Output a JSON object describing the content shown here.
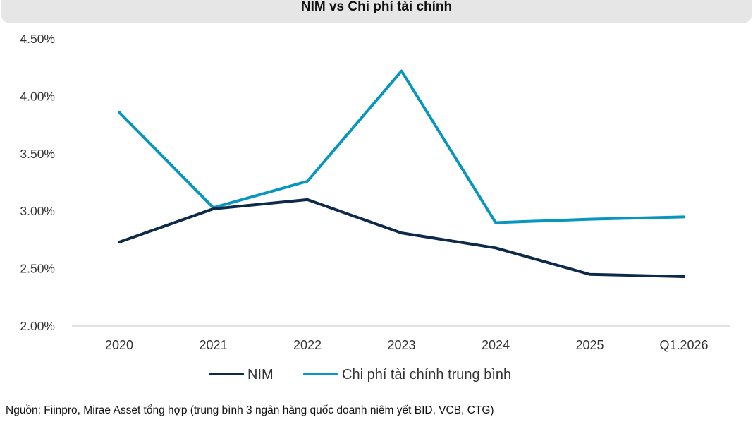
{
  "title": "NIM vs Chi phí tài chính",
  "source_note": "Nguồn: Fiinpro, Mirae Asset tổng hợp (trung bình 3 ngân hàng quốc doanh niêm yết BID, VCB, CTG)",
  "colors": {
    "nim": "#0d2a4a",
    "funding_cost": "#0796bf",
    "axis": "#d0d0d0",
    "tick_text": "#333333",
    "title_bar": "#e6e6e6"
  },
  "chart_data": {
    "type": "line",
    "title": "NIM vs Chi phí tài chính",
    "xlabel": "",
    "ylabel": "",
    "categories": [
      "2020",
      "2021",
      "2022",
      "2023",
      "2024",
      "2025",
      "Q1.2026"
    ],
    "ylim": [
      0.02,
      0.045
    ],
    "yticks": [
      0.02,
      0.025,
      0.03,
      0.035,
      0.04,
      0.045
    ],
    "ytick_labels": [
      "2.00%",
      "2.50%",
      "3.00%",
      "3.50%",
      "4.00%",
      "4.50%"
    ],
    "grid": false,
    "legend_position": "bottom-center",
    "series": [
      {
        "name": "NIM",
        "values": [
          0.0273,
          0.0302,
          0.031,
          0.0281,
          0.0268,
          0.0245,
          0.0243
        ]
      },
      {
        "name": "Chi phí tài chính trung bình",
        "values": [
          0.0386,
          0.0303,
          0.0326,
          0.0422,
          0.029,
          0.0293,
          0.0295
        ]
      }
    ]
  }
}
